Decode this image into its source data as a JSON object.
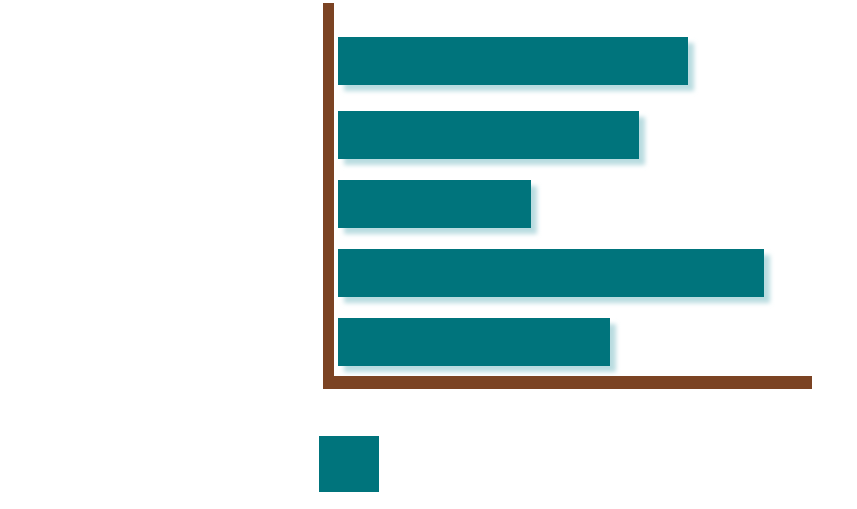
{
  "chart_data": {
    "type": "bar",
    "orientation": "horizontal",
    "title": "",
    "xlabel": "",
    "ylabel": "",
    "categories": [
      "",
      "",
      "",
      "",
      ""
    ],
    "values": [
      350,
      301,
      193,
      426,
      272
    ],
    "xlim": [
      0,
      475
    ],
    "grid": false,
    "legend": {
      "placement": "bottom-left",
      "entries": [
        {
          "label": "",
          "color": "#00747c"
        }
      ]
    }
  },
  "colors": {
    "bar": "#00747c",
    "bar_shadow": "#b9dce0",
    "axis": "#7b4323",
    "background": "#ffffff"
  }
}
